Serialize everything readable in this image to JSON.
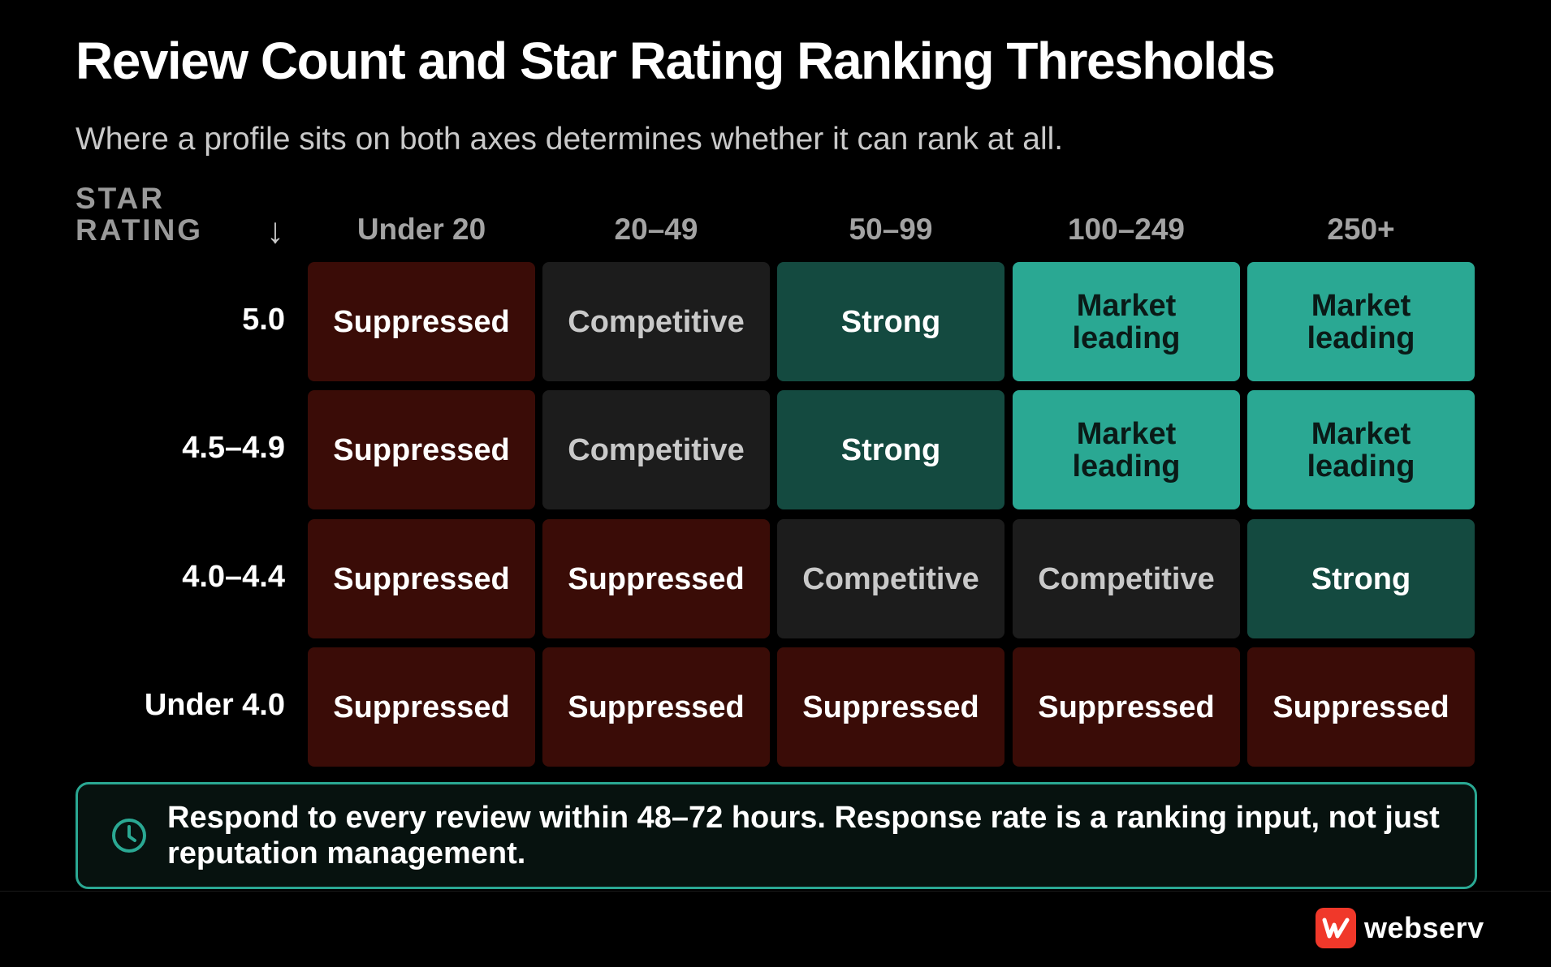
{
  "title": "Review Count and Star Rating Ranking Thresholds",
  "subtitle": "Where a profile sits on both axes determines whether it can rank at all.",
  "y_axis_label_line1": "STAR",
  "y_axis_label_line2": "RATING",
  "y_axis_arrow": "↓",
  "columns": [
    "Under 20",
    "20–49",
    "50–99",
    "100–249",
    "250+"
  ],
  "rows": [
    {
      "label": "5.0",
      "cells": [
        {
          "text": "Suppressed",
          "level": "suppressed"
        },
        {
          "text": "Competitive",
          "level": "competitive"
        },
        {
          "text": "Strong",
          "level": "strong"
        },
        {
          "text": "Market leading",
          "level": "leading"
        },
        {
          "text": "Market leading",
          "level": "leading"
        }
      ]
    },
    {
      "label": "4.5–4.9",
      "cells": [
        {
          "text": "Suppressed",
          "level": "suppressed"
        },
        {
          "text": "Competitive",
          "level": "competitive"
        },
        {
          "text": "Strong",
          "level": "strong"
        },
        {
          "text": "Market leading",
          "level": "leading"
        },
        {
          "text": "Market leading",
          "level": "leading"
        }
      ]
    },
    {
      "label": "4.0–4.4",
      "cells": [
        {
          "text": "Suppressed",
          "level": "suppressed"
        },
        {
          "text": "Suppressed",
          "level": "suppressed"
        },
        {
          "text": "Competitive",
          "level": "competitive"
        },
        {
          "text": "Competitive",
          "level": "competitive"
        },
        {
          "text": "Strong",
          "level": "strong"
        }
      ]
    },
    {
      "label": "Under 4.0",
      "cells": [
        {
          "text": "Suppressed",
          "level": "suppressed"
        },
        {
          "text": "Suppressed",
          "level": "suppressed"
        },
        {
          "text": "Suppressed",
          "level": "suppressed"
        },
        {
          "text": "Suppressed",
          "level": "suppressed"
        },
        {
          "text": "Suppressed",
          "level": "suppressed"
        }
      ]
    }
  ],
  "colors": {
    "suppressed": "#3a0c07",
    "competitive": "#1c1c1c",
    "strong": "#144a40",
    "leading": "#2aa893",
    "accent": "#2aa893",
    "brand": "#f0382a"
  },
  "callout": {
    "icon": "clock-icon",
    "text": "Respond to every review within 48–72 hours. Response rate is a ranking input, not just reputation management."
  },
  "logo": {
    "icon": "webserv-logo-icon",
    "text": "webserv"
  }
}
